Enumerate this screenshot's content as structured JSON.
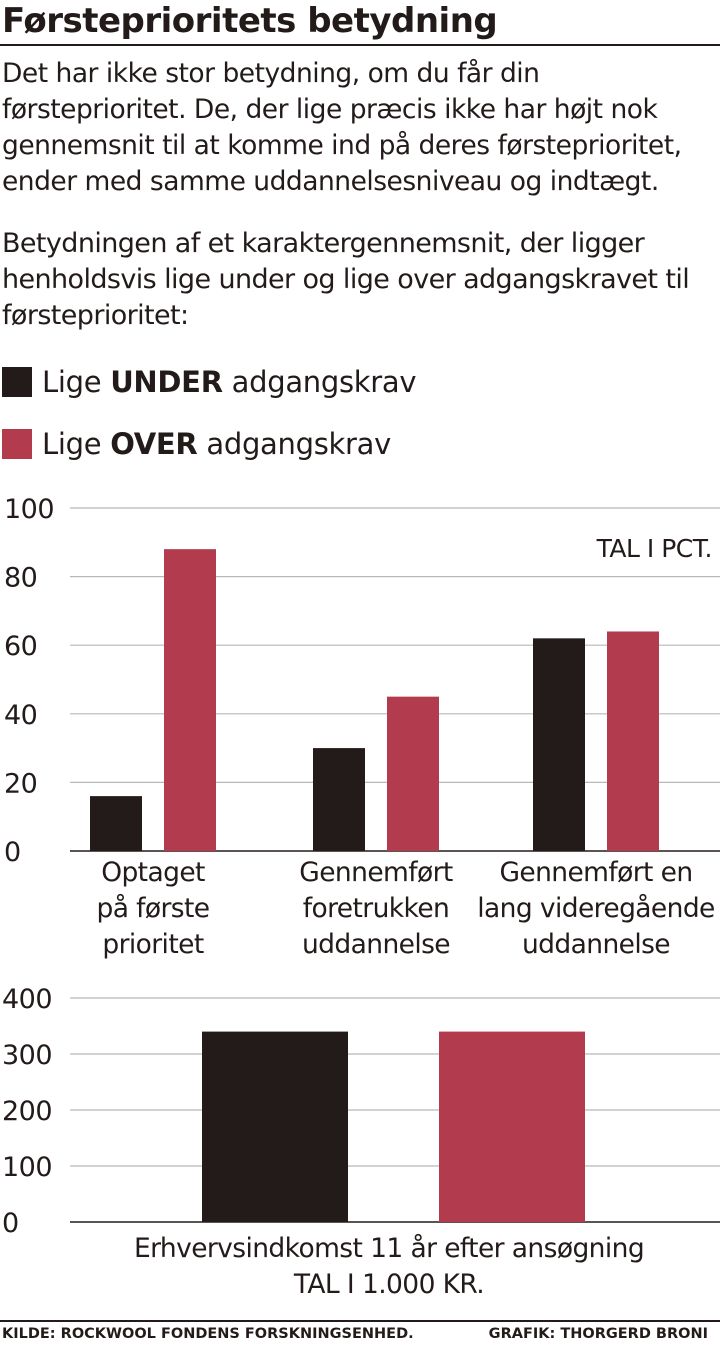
{
  "title": "Førsteprioritets betydning",
  "intro": "Det har ikke stor betydning, om du får din førsteprioritet. De, der lige præcis ikke har højt nok gennemsnit til at komme ind på deres førsteprioritet, ender med samme uddannelsesniveau og indtægt.",
  "subtitle": "Betydningen af et karaktergennemsnit, der ligger henholdsvis lige under og lige over adgangskravet til førsteprioritet:",
  "legend": [
    {
      "pre": "Lige ",
      "bold": "UNDER",
      "post": " adgangskrav"
    },
    {
      "pre": "Lige ",
      "bold": "OVER",
      "post": " adgangskrav"
    }
  ],
  "colors": {
    "under": "#231b1a",
    "over": "#b23c4e",
    "grid": "#b8b8b8"
  },
  "chart_data": [
    {
      "type": "bar",
      "unit_note": "TAL I PCT.",
      "ylim": [
        0,
        100
      ],
      "yticks": [
        0,
        20,
        40,
        60,
        80,
        100
      ],
      "grid": true,
      "categories": [
        [
          "Optaget",
          "på første",
          "prioritet"
        ],
        [
          "Gennemført",
          "foretrukken",
          "uddannelse"
        ],
        [
          "Gennemført en",
          "lang videregående",
          "uddannelse"
        ]
      ],
      "series": [
        {
          "name": "Lige UNDER adgangskrav",
          "values": [
            16,
            30,
            62
          ]
        },
        {
          "name": "Lige OVER adgangskrav",
          "values": [
            88,
            45,
            64
          ]
        }
      ]
    },
    {
      "type": "bar",
      "ylim": [
        0,
        400
      ],
      "yticks": [
        0,
        100,
        200,
        300,
        400
      ],
      "grid": true,
      "categories": [
        ""
      ],
      "xlabel": [
        "Erhvervsindkomst 11 år efter ansøgning",
        "TAL I  1.000 KR."
      ],
      "series": [
        {
          "name": "Lige UNDER adgangskrav",
          "values": [
            340
          ]
        },
        {
          "name": "Lige OVER adgangskrav",
          "values": [
            340
          ]
        }
      ]
    }
  ],
  "footer": {
    "source": "KILDE: ROCKWOOL FONDENS FORSKNINGSENHED.",
    "credit": "GRAFIK: THORGERD BRONI"
  }
}
